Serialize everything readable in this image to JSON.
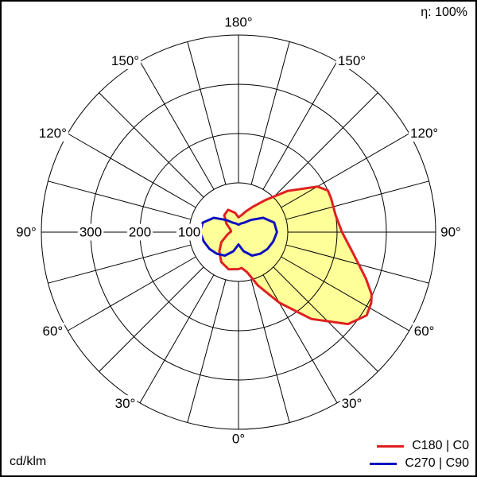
{
  "efficiency_label": "η: 100%",
  "unit_label": "cd/klm",
  "chart_data": {
    "type": "polar",
    "radial_max": 400,
    "radial_rings": [
      100,
      200,
      300,
      400
    ],
    "radial_tick_labels": [
      "100",
      "200",
      "300"
    ],
    "spoke_step_deg": 15,
    "angle_labels": [
      {
        "text": "0°",
        "angle": 0,
        "side": "bottom"
      },
      {
        "text": "30°",
        "angle": 30,
        "side": "left"
      },
      {
        "text": "30°",
        "angle": 30,
        "side": "right"
      },
      {
        "text": "60°",
        "angle": 60,
        "side": "left"
      },
      {
        "text": "60°",
        "angle": 60,
        "side": "right"
      },
      {
        "text": "90°",
        "angle": 90,
        "side": "left"
      },
      {
        "text": "90°",
        "angle": 90,
        "side": "right"
      },
      {
        "text": "120°",
        "angle": 120,
        "side": "left"
      },
      {
        "text": "120°",
        "angle": 120,
        "side": "right"
      },
      {
        "text": "150°",
        "angle": 150,
        "side": "left"
      },
      {
        "text": "150°",
        "angle": 150,
        "side": "right"
      },
      {
        "text": "180°",
        "angle": 180,
        "side": "top"
      }
    ],
    "fill_color": "#ffff99",
    "series": [
      {
        "name": "C180 | C0",
        "color": "#e02020",
        "points": [
          [
            -180,
            30
          ],
          [
            -170,
            40
          ],
          [
            -155,
            50
          ],
          [
            -140,
            45
          ],
          [
            -125,
            30
          ],
          [
            -110,
            18
          ],
          [
            -95,
            15
          ],
          [
            -80,
            22
          ],
          [
            -60,
            40
          ],
          [
            -45,
            55
          ],
          [
            -30,
            70
          ],
          [
            -15,
            78
          ],
          [
            0,
            75
          ],
          [
            5,
            73
          ],
          [
            12,
            83
          ],
          [
            20,
            115
          ],
          [
            30,
            165
          ],
          [
            40,
            230
          ],
          [
            50,
            290
          ],
          [
            57,
            310
          ],
          [
            62,
            305
          ],
          [
            65,
            298
          ],
          [
            70,
            275
          ],
          [
            80,
            235
          ],
          [
            90,
            210
          ],
          [
            100,
            200
          ],
          [
            110,
            200
          ],
          [
            115,
            200
          ],
          [
            120,
            185
          ],
          [
            130,
            130
          ],
          [
            140,
            85
          ],
          [
            150,
            60
          ],
          [
            160,
            45
          ],
          [
            170,
            35
          ],
          [
            180,
            30
          ]
        ]
      },
      {
        "name": "C270 | C90",
        "color": "#1010c0",
        "points": [
          [
            -180,
            15
          ],
          [
            -165,
            18
          ],
          [
            -150,
            22
          ],
          [
            -135,
            35
          ],
          [
            -120,
            58
          ],
          [
            -105,
            75
          ],
          [
            -90,
            78
          ],
          [
            -75,
            73
          ],
          [
            -60,
            68
          ],
          [
            -45,
            62
          ],
          [
            -30,
            55
          ],
          [
            -15,
            40
          ],
          [
            0,
            25
          ],
          [
            15,
            40
          ],
          [
            30,
            55
          ],
          [
            45,
            62
          ],
          [
            60,
            68
          ],
          [
            75,
            73
          ],
          [
            90,
            78
          ],
          [
            105,
            75
          ],
          [
            120,
            58
          ],
          [
            135,
            35
          ],
          [
            150,
            22
          ],
          [
            165,
            18
          ],
          [
            180,
            15
          ]
        ]
      }
    ]
  }
}
